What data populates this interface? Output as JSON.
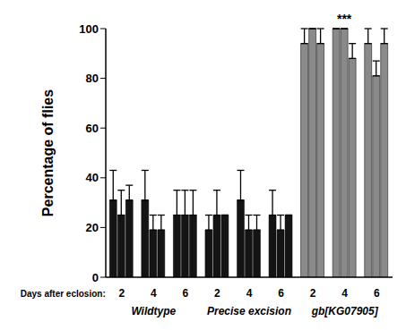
{
  "chart_data": {
    "type": "bar",
    "ylabel": "Percentage of flies",
    "xlabel": "Days after eclosion:",
    "groups": [
      {
        "name": "Wildtype",
        "categories": [
          "2",
          "4",
          "6"
        ]
      },
      {
        "name": "Precise excision",
        "categories": [
          "2",
          "4",
          "6"
        ]
      },
      {
        "name": "gb[KG07905]",
        "categories": [
          "2",
          "4",
          "6"
        ]
      }
    ],
    "series": [
      {
        "values": [
          31,
          31,
          25,
          19,
          31,
          25,
          94,
          100,
          94
        ],
        "errors": [
          12,
          12,
          10,
          6,
          12,
          10,
          6,
          0,
          6
        ]
      },
      {
        "values": [
          25,
          19,
          25,
          25,
          19,
          19,
          100,
          100,
          81
        ],
        "errors": [
          10,
          6,
          10,
          10,
          6,
          6,
          0,
          0,
          6
        ]
      },
      {
        "values": [
          31,
          19,
          25,
          25,
          19,
          25,
          94,
          88,
          94
        ],
        "errors": [
          6,
          6,
          10,
          0,
          6,
          0,
          6,
          6,
          6
        ]
      }
    ],
    "colors": [
      "#141414",
      "#141414",
      "#141414",
      "#141414",
      "#141414",
      "#141414",
      "#8a8a8a",
      "#8a8a8a",
      "#8a8a8a"
    ],
    "ylim": [
      0,
      100
    ],
    "yticks": [
      0,
      20,
      40,
      60,
      80,
      100
    ],
    "grid": false,
    "annotations": [
      {
        "text": "***",
        "group": "gb[KG07905]",
        "category": "4"
      }
    ]
  }
}
